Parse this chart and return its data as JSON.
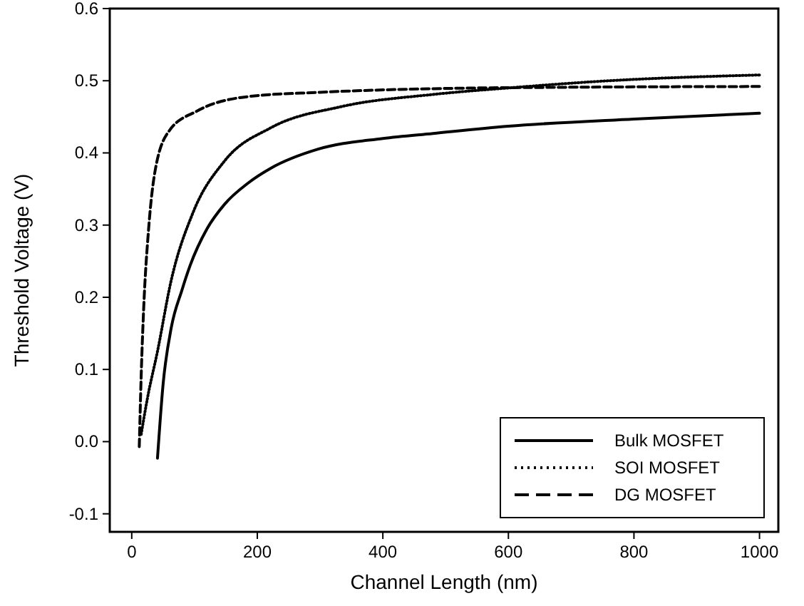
{
  "chart_data": {
    "type": "line",
    "xlabel": "Channel Length (nm)",
    "ylabel": "Threshold Voltage (V)",
    "xlim": [
      -35,
      1030
    ],
    "ylim": [
      -0.125,
      0.6
    ],
    "xticks": [
      0,
      200,
      400,
      600,
      800,
      1000
    ],
    "yticks": [
      {
        "value": -0.1,
        "label": "-0.1"
      },
      {
        "value": 0,
        "label": "0.0"
      },
      {
        "value": 0.1,
        "label": "0.1"
      },
      {
        "value": 0.2,
        "label": "0.2"
      },
      {
        "value": 0.3,
        "label": "0.3"
      },
      {
        "value": 0.4,
        "label": "0.4"
      },
      {
        "value": 0.5,
        "label": "0.5"
      },
      {
        "value": 0.6,
        "label": "0.6"
      }
    ],
    "legend": "bottom right",
    "grid": false,
    "marker": "none",
    "series": [
      {
        "name": "Bulk MOSFET",
        "color": "#000000",
        "line_style": "solid",
        "x": [
          41,
          50,
          63,
          80,
          93,
          120,
          148,
          185,
          222,
          296,
          400,
          480,
          600,
          800,
          1000
        ],
        "values": [
          -0.023,
          0.08,
          0.158,
          0.21,
          0.244,
          0.295,
          0.329,
          0.358,
          0.379,
          0.405,
          0.42,
          0.427,
          0.437,
          0.447,
          0.455
        ]
      },
      {
        "name": "SOI MOSFET",
        "color": "#000000",
        "line_style": "dotted",
        "x": [
          15,
          25,
          41,
          63,
          97,
          148,
          222,
          333,
          480,
          600,
          760,
          1000
        ],
        "values": [
          0.01,
          0.06,
          0.125,
          0.224,
          0.316,
          0.389,
          0.435,
          0.464,
          0.481,
          0.49,
          0.5,
          0.508
        ]
      },
      {
        "name": "DG MOSFET",
        "color": "#000000",
        "line_style": "dashed",
        "x": [
          12,
          15,
          19,
          27,
          38,
          60,
          104,
          185,
          300,
          480,
          700,
          1000
        ],
        "values": [
          -0.007,
          0.09,
          0.184,
          0.296,
          0.379,
          0.431,
          0.458,
          0.478,
          0.484,
          0.489,
          0.491,
          0.492
        ]
      }
    ]
  }
}
